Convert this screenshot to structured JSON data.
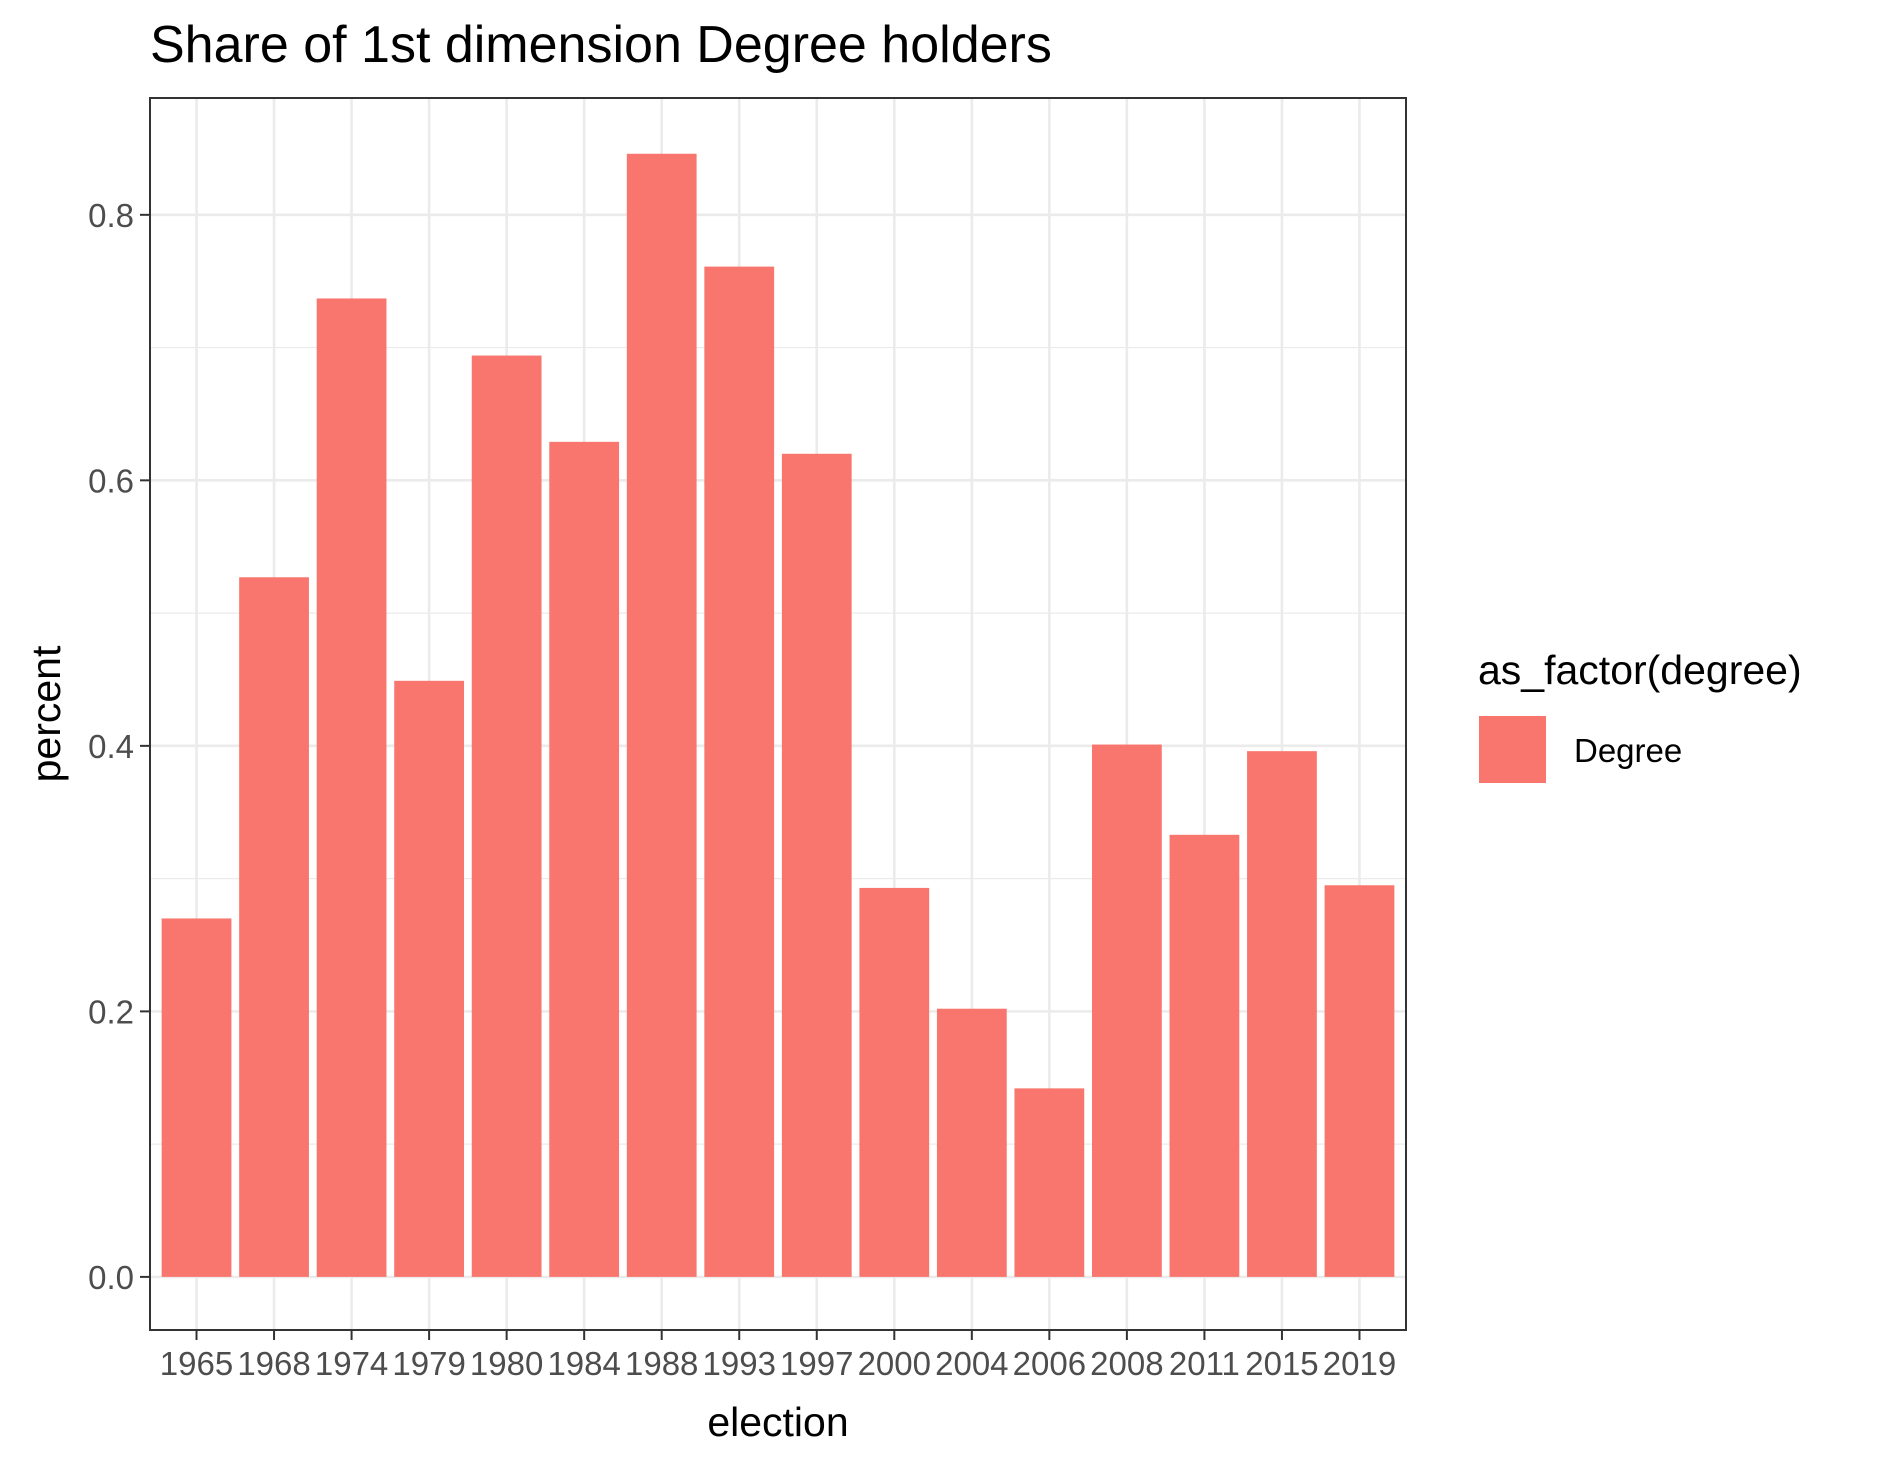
{
  "chart_data": {
    "type": "bar",
    "title": "Share of 1st dimension Degree holders",
    "xlabel": "election",
    "ylabel": "percent",
    "categories": [
      "1965",
      "1968",
      "1974",
      "1979",
      "1980",
      "1984",
      "1988",
      "1993",
      "1997",
      "2000",
      "2004",
      "2006",
      "2008",
      "2011",
      "2015",
      "2019"
    ],
    "series": [
      {
        "name": "Degree",
        "color": "#F8766D",
        "values": [
          0.27,
          0.527,
          0.737,
          0.449,
          0.694,
          0.629,
          0.846,
          0.761,
          0.62,
          0.293,
          0.202,
          0.142,
          0.401,
          0.333,
          0.396,
          0.295
        ]
      }
    ],
    "ylim": [
      -0.04,
      0.888
    ],
    "y_ticks": [
      0.0,
      0.2,
      0.4,
      0.6,
      0.8
    ],
    "y_tick_labels": [
      "0.0",
      "0.2",
      "0.4",
      "0.6",
      "0.8"
    ],
    "grid": true,
    "legend": {
      "title": "as_factor(degree)",
      "position": "right"
    }
  }
}
